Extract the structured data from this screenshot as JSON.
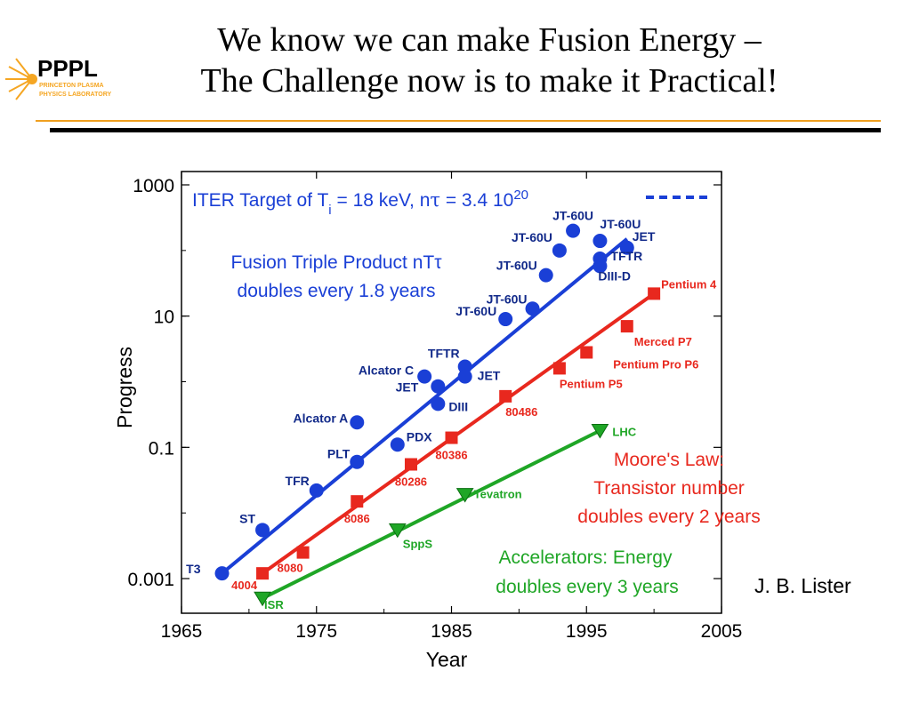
{
  "slide": {
    "title_line1": "We know we can make Fusion Energy –",
    "title_line2": "The Challenge now is to make it Practical!",
    "logo_text": "PPPL",
    "logo_subtext1": "PRINCETON PLASMA",
    "logo_subtext2": "PHYSICS LABORATORY",
    "credit": "J. B. Lister",
    "colors": {
      "fusion": "#1a3fd6",
      "moore": "#e8281e",
      "accel": "#1fa626",
      "rule_orange": "#f0a020",
      "logo_orange": "#f5a623"
    }
  },
  "chart_data": {
    "type": "scatter",
    "xlabel": "Year",
    "ylabel": "Progress",
    "xlim": [
      1965,
      2005
    ],
    "ylim": [
      0.0003,
      1000
    ],
    "yscale": "log",
    "x_ticks": [
      1965,
      1975,
      1985,
      1995,
      2005
    ],
    "x_tick_labels": [
      "1965",
      "1975",
      "1985",
      "1995",
      "2005"
    ],
    "y_ticks": [
      0.001,
      0.1,
      10,
      1000
    ],
    "y_tick_labels": [
      "0.001",
      "0.1",
      "10",
      "1000"
    ],
    "grid": false,
    "target": {
      "label_prefix": "ITER Target of T",
      "label_sub": "i",
      "label_mid": " = 18 keV, n",
      "label_tau": "τ",
      "label_eq": " = 3.4 10",
      "label_sup": "20",
      "y": 1000
    },
    "annotations": {
      "fusion_line1": "Fusion Triple Product nTτ",
      "fusion_line2": "doubles every 1.8 years",
      "moore_line1": "Moore's Law:",
      "moore_line2": "Transistor number",
      "moore_line3": "doubles every 2 years",
      "accel_line1": "Accelerators: Energy",
      "accel_line2": "doubles every 3 years"
    },
    "series": [
      {
        "name": "Fusion",
        "color": "#1a3fd6",
        "marker": "circle",
        "trend": [
          [
            1968,
            0.0012
          ],
          [
            1998,
            150
          ]
        ],
        "points": [
          {
            "label": "T3",
            "x": 1968,
            "y": 0.0012
          },
          {
            "label": "ST",
            "x": 1971,
            "y": 0.0055
          },
          {
            "label": "TFR",
            "x": 1975,
            "y": 0.022
          },
          {
            "label": "PLT",
            "x": 1978,
            "y": 0.06
          },
          {
            "label": "Alcator A",
            "x": 1978,
            "y": 0.24
          },
          {
            "label": "PDX",
            "x": 1981,
            "y": 0.11
          },
          {
            "label": "Alcator C",
            "x": 1983,
            "y": 1.2
          },
          {
            "label": "JET",
            "x": 1984,
            "y": 0.85
          },
          {
            "label": "DIII",
            "x": 1984,
            "y": 0.46
          },
          {
            "label": "TFTR",
            "x": 1986,
            "y": 1.7
          },
          {
            "label": "JET",
            "x": 1986,
            "y": 1.2
          },
          {
            "label": "JT-60U",
            "x": 1989,
            "y": 9
          },
          {
            "label": "JT-60U",
            "x": 1991,
            "y": 13
          },
          {
            "label": "JT-60U",
            "x": 1992,
            "y": 42
          },
          {
            "label": "JT-60U",
            "x": 1993,
            "y": 100
          },
          {
            "label": "JT-60U",
            "x": 1994,
            "y": 200
          },
          {
            "label": "JT-60U",
            "x": 1996,
            "y": 140
          },
          {
            "label": "TFTR",
            "x": 1996,
            "y": 75
          },
          {
            "label": "DIII-D",
            "x": 1996,
            "y": 58
          },
          {
            "label": "JET",
            "x": 1998,
            "y": 110
          }
        ]
      },
      {
        "name": "Moore",
        "color": "#e8281e",
        "marker": "square",
        "trend": [
          [
            1971,
            0.0012
          ],
          [
            2000,
            22
          ]
        ],
        "points": [
          {
            "label": "4004",
            "x": 1971,
            "y": 0.0012
          },
          {
            "label": "8080",
            "x": 1974,
            "y": 0.0025
          },
          {
            "label": "8086",
            "x": 1978,
            "y": 0.015
          },
          {
            "label": "80286",
            "x": 1982,
            "y": 0.055
          },
          {
            "label": "80386",
            "x": 1985,
            "y": 0.14
          },
          {
            "label": "80486",
            "x": 1989,
            "y": 0.6
          },
          {
            "label": "Pentium P5",
            "x": 1993,
            "y": 1.6
          },
          {
            "label": "Pentium Pro P6",
            "x": 1995,
            "y": 2.8
          },
          {
            "label": "Merced P7",
            "x": 1998,
            "y": 7
          },
          {
            "label": "Pentium 4",
            "x": 2000,
            "y": 22
          }
        ]
      },
      {
        "name": "Accelerators",
        "color": "#1fa626",
        "marker": "triangle-down",
        "trend": [
          [
            1971,
            0.0005
          ],
          [
            1996,
            0.18
          ]
        ],
        "points": [
          {
            "label": "ISR",
            "x": 1971,
            "y": 0.0005
          },
          {
            "label": "SppS",
            "x": 1981,
            "y": 0.0055
          },
          {
            "label": "Tevatron",
            "x": 1986,
            "y": 0.019
          },
          {
            "label": "LHC",
            "x": 1996,
            "y": 0.18
          }
        ]
      }
    ]
  }
}
